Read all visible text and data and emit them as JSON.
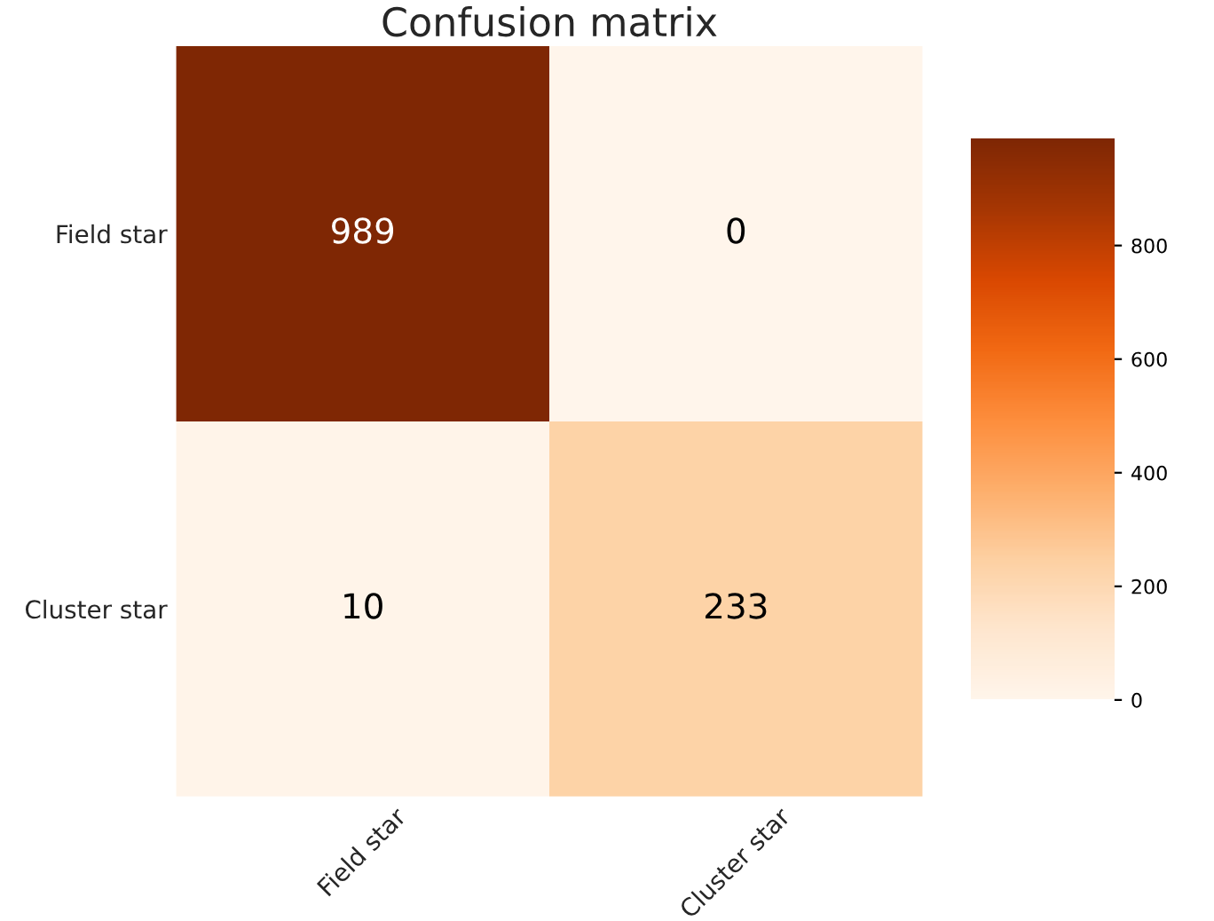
{
  "chart_data": {
    "type": "heatmap",
    "title": "Confusion matrix",
    "categories": [
      "Field star",
      "Cluster star"
    ],
    "y_categories": [
      "Field star",
      "Cluster star"
    ],
    "cells": [
      [
        989,
        0
      ],
      [
        10,
        233
      ]
    ],
    "data_labels": true,
    "clim": [
      0,
      989
    ],
    "cticks": [
      0,
      200,
      400,
      600,
      800
    ]
  }
}
